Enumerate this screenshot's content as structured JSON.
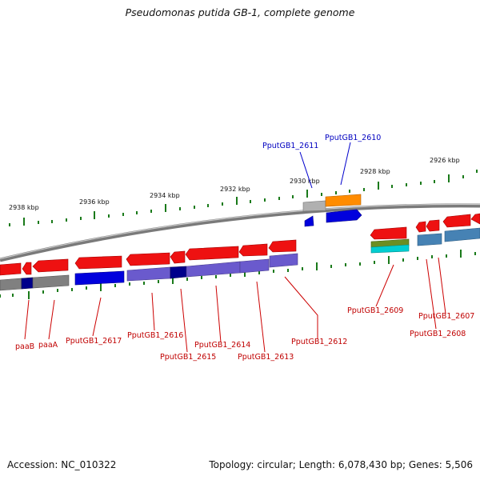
{
  "title": "Pseudomonas putida GB-1, complete genome",
  "footer": {
    "accession": "Accession: NC_010322",
    "topology": "Topology: circular; Length: 6,078,430 bp; Genes: 5,506"
  },
  "scale_labels": [
    "2938 kbp",
    "2936 kbp",
    "2934 kbp",
    "2932 kbp",
    "2930 kbp",
    "2928 kbp",
    "2926 kbp"
  ],
  "gene_labels_red": [
    "paaB",
    "paaA",
    "PputGB1_2617",
    "PputGB1_2616",
    "PputGB1_2615",
    "PputGB1_2614",
    "PputGB1_2613",
    "PputGB1_2612",
    "PputGB1_2609",
    "PputGB1_2608",
    "PputGB1_2607"
  ],
  "gene_labels_blue": [
    "PputGB1_2611",
    "PputGB1_2610"
  ],
  "colors": {
    "arrow_red": "#ee1111",
    "blue": "#0000dd",
    "slate": "#6a5acd",
    "navy": "#00008b",
    "gray": "#808080",
    "orange": "#ff8c00",
    "olive": "#6b8e23",
    "cyan": "#00ced1",
    "steel": "#4682b4",
    "tick_green": "#1a7a1a",
    "backbone": "#7a7a7a"
  }
}
